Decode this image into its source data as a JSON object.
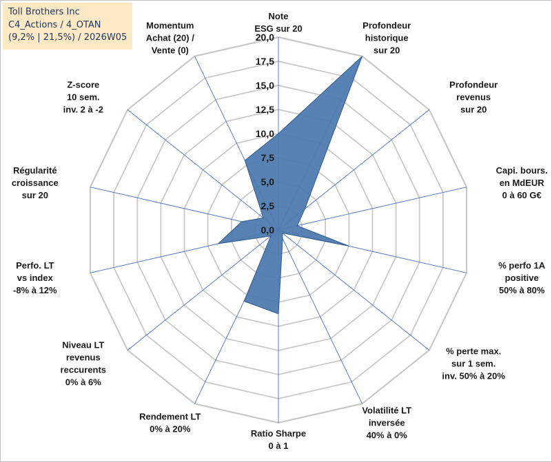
{
  "title_box": {
    "line1": "Toll Brothers Inc",
    "line2": "C4_Actions / 4_OTAN",
    "line3": "(9,2% | 21,5%) / 2026W05"
  },
  "colors": {
    "fill": "#4f7bb0",
    "stroke": "#2e5a8e",
    "grid": "#c8c8c8",
    "spoke": "#4472c4",
    "title_bg": "#fde9c4",
    "title_text": "#1f3864"
  },
  "chart_data": {
    "type": "radar",
    "title": "",
    "rmin": 0,
    "rmax": 20,
    "step": 2.5,
    "tick_labels": [
      "0,0",
      "2,5",
      "5,0",
      "7,5",
      "10,0",
      "12,5",
      "15,0",
      "17,5",
      "20,0"
    ],
    "axes": [
      {
        "label": [
          "Note",
          "ESG sur 20"
        ],
        "value": 10.0
      },
      {
        "label": [
          "Profondeur",
          "historique",
          "sur 20"
        ],
        "value": 20.0
      },
      {
        "label": [
          "Profondeur",
          "revenus",
          "sur 20"
        ],
        "value": 3.5
      },
      {
        "label": [
          "Capi. bours.",
          "en MdEUR",
          "0 à 60 G€"
        ],
        "value": 2.0
      },
      {
        "label": [
          "% perfo 1A",
          "positive",
          "50% à 80%"
        ],
        "value": 7.5
      },
      {
        "label": [
          "% perte max.",
          "sur 1 sem.",
          "inv. 50% à 20%"
        ],
        "value": 0.5
      },
      {
        "label": [
          "Volatilité LT",
          "inversée",
          "40% à 0%"
        ],
        "value": 1.0
      },
      {
        "label": [
          "Ratio Sharpe",
          "0 à 1"
        ],
        "value": 8.7
      },
      {
        "label": [
          "Rendement LT",
          "0% à 20%"
        ],
        "value": 8.2
      },
      {
        "label": [
          "Niveau LT",
          "revenus",
          "reccurents",
          "0% à 6%"
        ],
        "value": 1.0
      },
      {
        "label": [
          "Perfo. LT",
          "vs index",
          "-8% à 12%"
        ],
        "value": 6.4
      },
      {
        "label": [
          "Régularité",
          "croissance",
          "sur 20"
        ],
        "value": 3.9
      },
      {
        "label": [
          "Z-score",
          "10 sem.",
          "inv. 2 à -2"
        ],
        "value": 2.0
      },
      {
        "label": [
          "Momentum",
          "Achat (20) /",
          "Vente (0)"
        ],
        "value": 8.0
      }
    ]
  }
}
